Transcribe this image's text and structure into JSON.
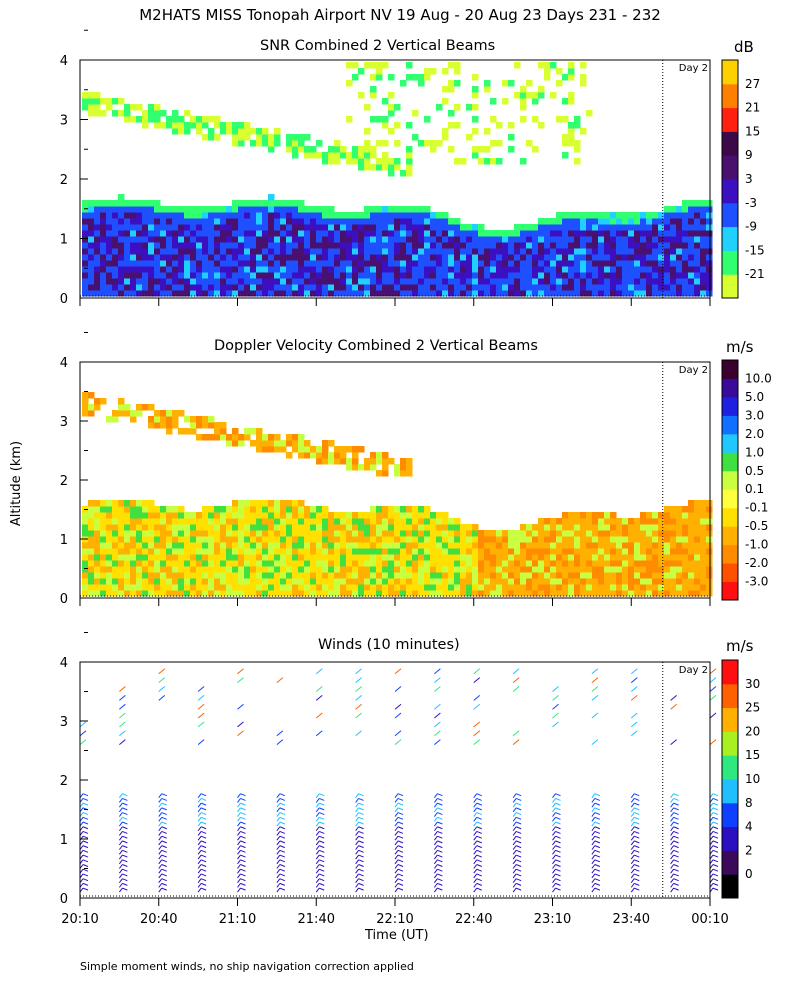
{
  "figure_title": "M2HATS MISS Tonopah Airport NV  19 Aug - 20 Aug 23 Days 231 - 232",
  "y_axis_label": "Altitude (km)",
  "x_axis_label": "Time (UT)",
  "footnote": "Simple moment winds, no ship navigation correction applied",
  "day_marker": "Day 2",
  "x_ticks": [
    "20:10",
    "20:40",
    "21:10",
    "21:40",
    "22:10",
    "22:40",
    "23:10",
    "23:40",
    "00:10"
  ],
  "y_ticks": [
    "0",
    "1",
    "2",
    "3",
    "4"
  ],
  "colors": {
    "marker_line": "#000000"
  },
  "chart_data": [
    {
      "type": "heatmap",
      "title": "SNR Combined 2 Vertical Beams",
      "xlabel": "",
      "ylabel": "Altitude (km)",
      "xlim": [
        "20:10",
        "00:10"
      ],
      "ylim": [
        0,
        4
      ],
      "colorbar": {
        "unit": "dB",
        "labels": [
          "27",
          "21",
          "15",
          "9",
          "3",
          "-3",
          "-9",
          "-15",
          "-21"
        ],
        "colors": [
          "#d8ff30",
          "#30ff70",
          "#20d0ff",
          "#1e50ff",
          "#3c10c0",
          "#4a1070",
          "#3c0a48",
          "#ff2010",
          "#ff8000",
          "#ffd000"
        ]
      },
      "features": [
        {
          "name": "boundary layer",
          "altitude_km": [
            0.1,
            1.7
          ],
          "dominant_db": [
            -3,
            9
          ]
        },
        {
          "name": "upper layer",
          "altitude_km": [
            2.4,
            3.4
          ],
          "dominant_db": [
            -21,
            -9
          ]
        }
      ]
    },
    {
      "type": "heatmap",
      "title": "Doppler Velocity Combined 2 Vertical Beams",
      "xlabel": "",
      "ylabel": "Altitude (km)",
      "xlim": [
        "20:10",
        "00:10"
      ],
      "ylim": [
        0,
        4
      ],
      "colorbar": {
        "unit": "m/s",
        "labels": [
          "10.0",
          "5.0",
          "3.0",
          "2.0",
          "1.0",
          "0.5",
          "0.1",
          "-0.1",
          "-0.5",
          "-1.0",
          "-2.0",
          "-3.0"
        ],
        "colors": [
          "#ff1010",
          "#ff5000",
          "#ff8c00",
          "#ffb000",
          "#ffe000",
          "#ffff40",
          "#c8ff40",
          "#40e040",
          "#20c8ff",
          "#1070ff",
          "#2020e0",
          "#3a0a9a",
          "#3a0030"
        ]
      },
      "features": [
        {
          "name": "boundary layer",
          "altitude_km": [
            0.1,
            1.7
          ],
          "dominant_ms": [
            -1.0,
            0.5
          ]
        },
        {
          "name": "upper layer",
          "altitude_km": [
            2.4,
            3.4
          ],
          "dominant_ms": [
            -1.0,
            0.1
          ]
        }
      ]
    },
    {
      "type": "scatter",
      "title": "Winds (10 minutes)",
      "xlabel": "Time (UT)",
      "ylabel": "Altitude (km)",
      "xlim": [
        "20:10",
        "00:10"
      ],
      "ylim": [
        0,
        4
      ],
      "colorbar": {
        "unit": "m/s",
        "labels": [
          "30",
          "25",
          "20",
          "15",
          "10",
          "8",
          "4",
          "2",
          "0"
        ],
        "colors": [
          "#000000",
          "#3c0a5a",
          "#2a10c0",
          "#1040ff",
          "#20c0ff",
          "#30e880",
          "#a8f020",
          "#ffb000",
          "#ff6000",
          "#ff1010"
        ]
      },
      "profile_times_min_after_2010": [
        0,
        15,
        30,
        45,
        60,
        75,
        90,
        105,
        120,
        135,
        150,
        165,
        180,
        195,
        210,
        225,
        240
      ]
    }
  ]
}
